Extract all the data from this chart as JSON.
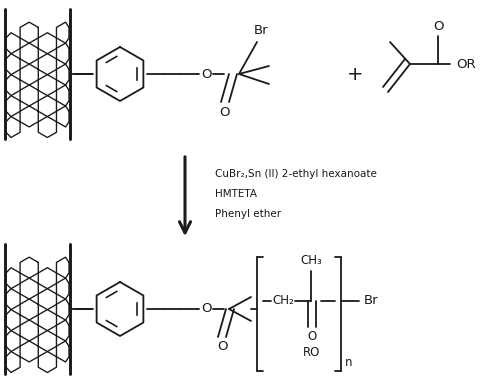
{
  "bg_color": "#ffffff",
  "line_color": "#1a1a1a",
  "lw": 1.3,
  "figsize": [
    5.0,
    3.84
  ],
  "dpi": 100,
  "conditions": [
    "CuBr₂,Sn (II) 2-ethyl hexanoate",
    "HMTETA",
    "Phenyl ether"
  ]
}
